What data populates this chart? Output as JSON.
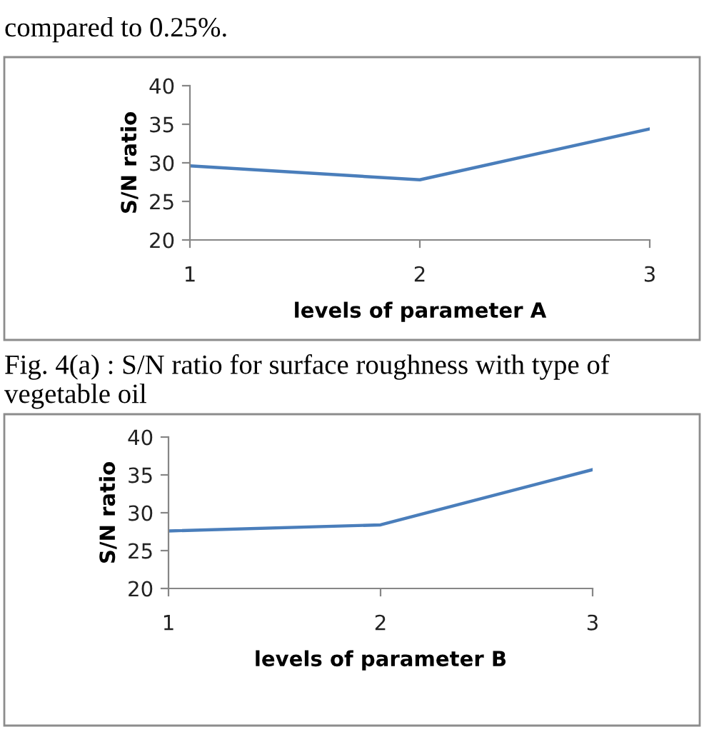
{
  "chart_data": [
    {
      "type": "line",
      "categories": [
        "1",
        "2",
        "3"
      ],
      "xlabel": "levels of parameter A",
      "ylabel": "S/N ratio",
      "ylim": [
        20,
        40
      ],
      "yticks": [
        20,
        25,
        30,
        35,
        40
      ],
      "grid": false,
      "legend": false,
      "marker": "none",
      "line_style": "solid",
      "series": [
        {
          "color": "#4a7ebb",
          "values": [
            29.6,
            27.8,
            34.4
          ]
        }
      ],
      "annotations": [
        "compared to 0.25%.",
        "Fig. 4(a) : S/N ratio for surface roughness with type of vegetable oil"
      ]
    },
    {
      "type": "line",
      "categories": [
        "1",
        "2",
        "3"
      ],
      "xlabel": "levels of parameter B",
      "ylabel": "S/N ratio",
      "ylim": [
        20,
        40
      ],
      "yticks": [
        20,
        25,
        30,
        35,
        40
      ],
      "grid": false,
      "legend": false,
      "marker": "none",
      "line_style": "solid",
      "series": [
        {
          "color": "#4a7ebb",
          "values": [
            27.6,
            28.4,
            35.7
          ]
        }
      ]
    }
  ]
}
